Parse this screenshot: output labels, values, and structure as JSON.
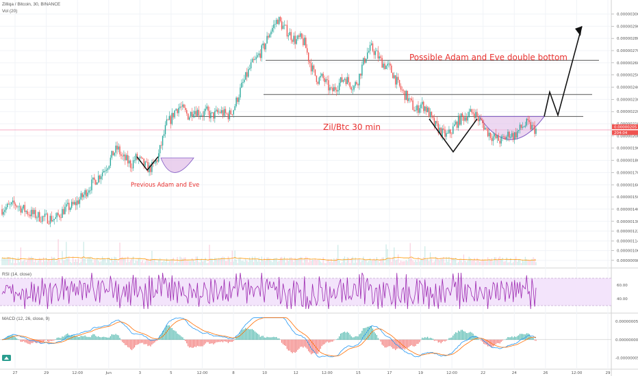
{
  "header": {
    "symbol_line": "Zilliqa / Bitcoin, 30, BINANCE",
    "volume_line": "Vol (20)",
    "rsi_line": "RSI (14, close)",
    "macd_line": "MACD (12, 26, close, 9)"
  },
  "colors": {
    "up": "#26a69a",
    "down": "#ef5350",
    "rsi": "#9c27b0",
    "rsi_band": "#f3e4fb",
    "macd": "#2196f3",
    "signal": "#ff6d00",
    "annotation": "#e8312f",
    "cup_fill": "#e1bee7",
    "cup_stroke": "#7e57c2",
    "price_line": "#f48fb1"
  },
  "chart_data": [
    {
      "type": "candlestick",
      "title": "Zilliqa / Bitcoin, 30, BINANCE",
      "y_ticks": [
        "0.00000300",
        "0.00000290",
        "0.00000280",
        "0.00000270",
        "0.00000260",
        "0.00000250",
        "0.00000240",
        "0.00000230",
        "0.00000220",
        "0.00000210",
        "0.00000200",
        "0.00000190",
        "0.00000180",
        "0.00000170",
        "0.00000160",
        "0.00000150",
        "0.00000140",
        "0.00000130",
        "0.00000122",
        "0.00000114",
        "0.00000106",
        "0.00000098"
      ],
      "y_tick_values": [
        300,
        290,
        280,
        270,
        260,
        250,
        240,
        230,
        220,
        210,
        200,
        190,
        180,
        170,
        160,
        150,
        140,
        130,
        122,
        114,
        106,
        98
      ],
      "ylim": [
        94,
        307
      ],
      "y_scale_note": "",
      "x_ticks": [
        "27",
        "29",
        "12:00",
        "Jun",
        "3",
        "5",
        "12:00",
        "8",
        "10",
        "12",
        "12:00",
        "15",
        "17",
        "19",
        "12:00",
        "22",
        "24",
        "26",
        "12:00",
        "29"
      ],
      "last_price_labels": [
        "0.00000205",
        "204:04"
      ],
      "horizontal_levels": [
        262,
        234,
        216
      ],
      "annotations": [
        "Possible Adam and Eve double bottom",
        "Zil/Btc 30 min",
        "Previous  Adam and Eve"
      ],
      "price_path": [
        [
          0,
          140
        ],
        [
          3,
          144
        ],
        [
          6,
          137
        ],
        [
          9,
          133
        ],
        [
          12,
          132
        ],
        [
          14,
          140
        ],
        [
          16,
          143
        ],
        [
          18,
          150
        ],
        [
          20,
          160
        ],
        [
          22,
          168
        ],
        [
          24,
          178
        ],
        [
          25,
          186
        ],
        [
          26,
          190
        ],
        [
          27,
          182
        ],
        [
          28,
          180
        ],
        [
          29,
          176
        ],
        [
          30,
          182
        ],
        [
          31,
          180
        ],
        [
          32,
          176
        ],
        [
          33,
          173
        ],
        [
          34,
          175
        ],
        [
          35,
          182
        ],
        [
          36,
          196
        ],
        [
          37,
          210
        ],
        [
          38,
          214
        ],
        [
          39,
          222
        ],
        [
          40,
          224
        ],
        [
          41,
          220
        ],
        [
          42,
          216
        ],
        [
          43,
          222
        ],
        [
          44,
          220
        ],
        [
          45,
          218
        ],
        [
          46,
          220
        ],
        [
          47,
          216
        ],
        [
          48,
          218
        ],
        [
          49,
          220
        ],
        [
          50,
          218
        ],
        [
          51,
          217
        ],
        [
          52,
          222
        ],
        [
          53,
          232
        ],
        [
          54,
          242
        ],
        [
          55,
          250
        ],
        [
          56,
          258
        ],
        [
          57,
          262
        ],
        [
          58,
          268
        ],
        [
          59,
          274
        ],
        [
          60,
          284
        ],
        [
          61,
          290
        ],
        [
          62,
          296
        ],
        [
          63,
          290
        ],
        [
          64,
          286
        ],
        [
          65,
          282
        ],
        [
          66,
          278
        ],
        [
          67,
          280
        ],
        [
          68,
          276
        ],
        [
          69,
          262
        ],
        [
          70,
          252
        ],
        [
          71,
          246
        ],
        [
          72,
          248
        ],
        [
          73,
          242
        ],
        [
          74,
          236
        ],
        [
          75,
          240
        ],
        [
          76,
          244
        ],
        [
          77,
          248
        ],
        [
          78,
          244
        ],
        [
          79,
          240
        ],
        [
          80,
          246
        ],
        [
          81,
          258
        ],
        [
          82,
          268
        ],
        [
          83,
          272
        ],
        [
          84,
          268
        ],
        [
          85,
          262
        ],
        [
          86,
          258
        ],
        [
          87,
          256
        ],
        [
          88,
          250
        ],
        [
          89,
          242
        ],
        [
          90,
          236
        ],
        [
          91,
          232
        ],
        [
          92,
          226
        ],
        [
          93,
          220
        ],
        [
          94,
          226
        ],
        [
          95,
          224
        ],
        [
          96,
          218
        ],
        [
          97,
          210
        ],
        [
          98,
          206
        ],
        [
          99,
          202
        ],
        [
          100,
          200
        ],
        [
          101,
          204
        ],
        [
          102,
          210
        ],
        [
          103,
          214
        ],
        [
          104,
          216
        ],
        [
          105,
          218
        ],
        [
          106,
          220
        ],
        [
          107,
          214
        ],
        [
          108,
          210
        ],
        [
          109,
          204
        ],
        [
          110,
          200
        ],
        [
          111,
          198
        ],
        [
          112,
          196
        ],
        [
          113,
          198
        ],
        [
          114,
          202
        ],
        [
          115,
          200
        ],
        [
          116,
          204
        ],
        [
          117,
          208
        ],
        [
          118,
          210
        ],
        [
          119,
          207
        ],
        [
          120,
          205
        ]
      ]
    },
    {
      "type": "bar",
      "title": "Vol (20)",
      "note": "",
      "ma_line": "orange"
    },
    {
      "type": "line",
      "title": "RSI (14, close)",
      "y_ticks": [
        "60.00",
        "40.00"
      ],
      "y_tick_values": [
        60,
        40
      ],
      "ylim": [
        22,
        80
      ],
      "band": [
        30,
        70
      ]
    },
    {
      "type": "line",
      "title": "MACD (12, 26, close, 9)",
      "y_ticks": [
        "0.00000005",
        "0.00000000",
        "-0.00000005"
      ],
      "y_tick_values": [
        5,
        0,
        -5
      ],
      "ylim": [
        -7.5,
        6.5
      ],
      "series": [
        {
          "name": "",
          "color": "#2196f3"
        },
        {
          "name": "",
          "color": "#ff6d00"
        }
      ]
    }
  ]
}
